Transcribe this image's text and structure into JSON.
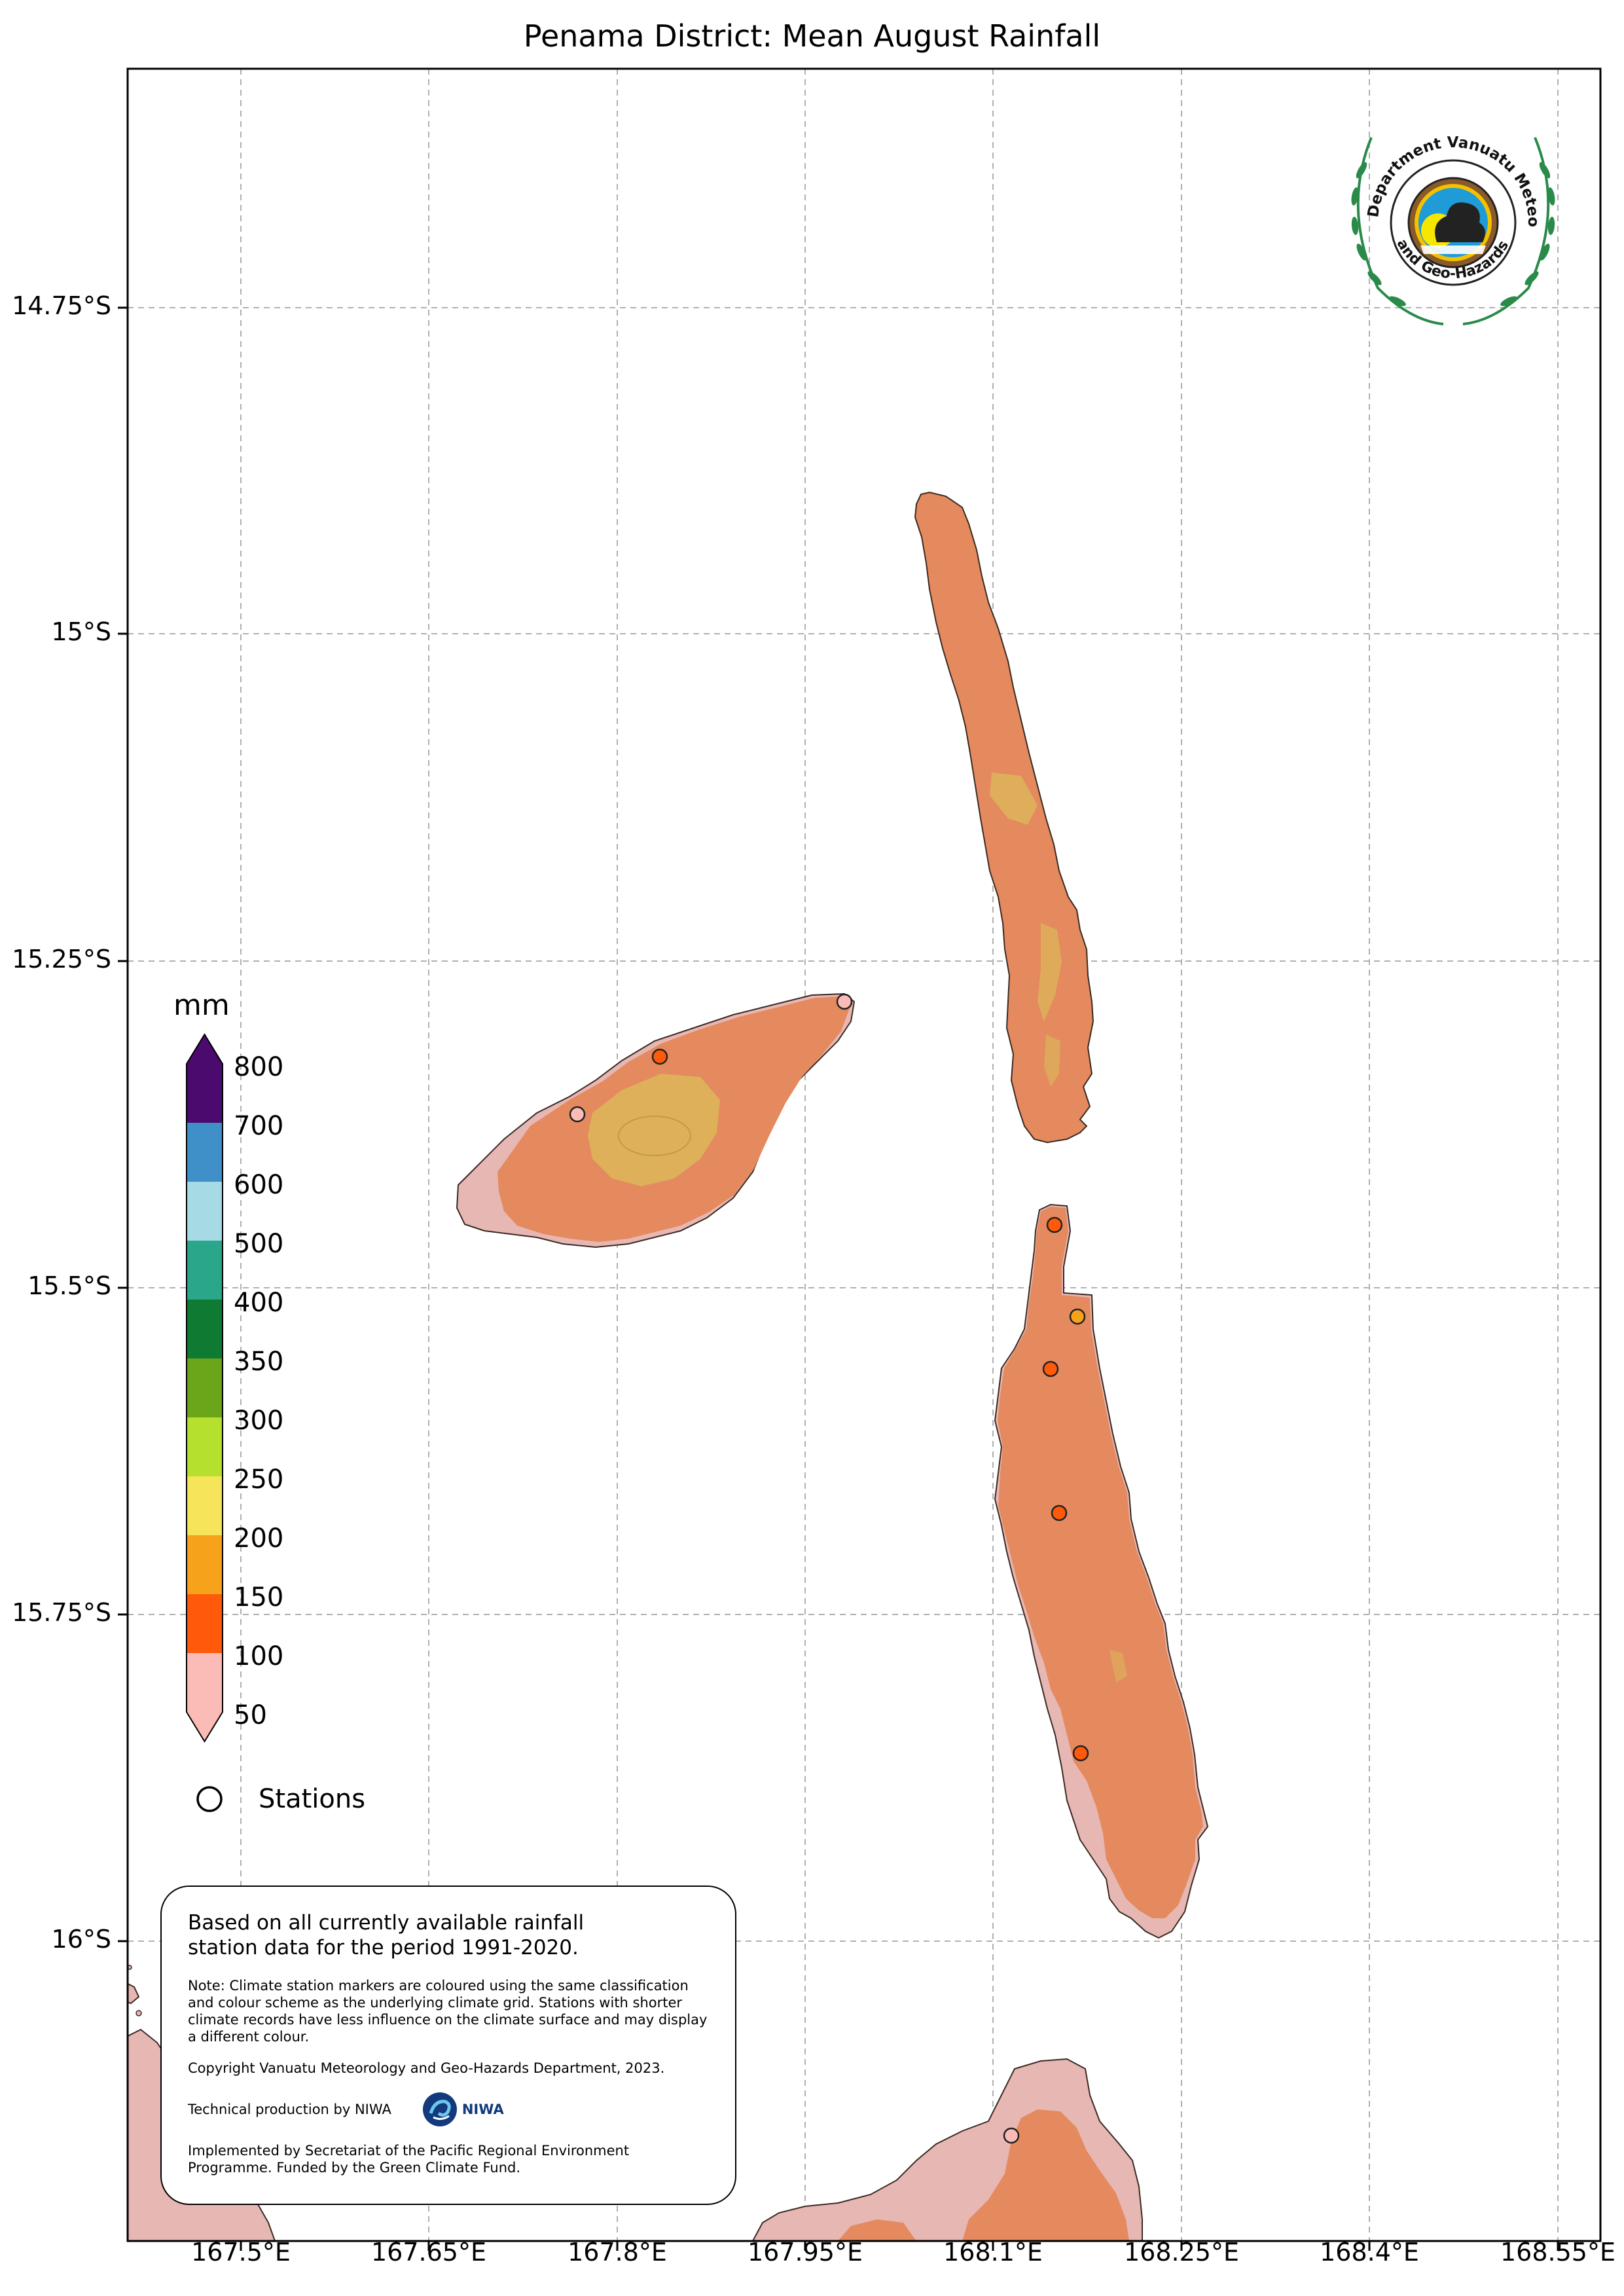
{
  "title": "Penama District: Mean August Rainfall",
  "axes": {
    "y_labels": [
      "14.75°S",
      "15°S",
      "15.25°S",
      "15.5°S",
      "15.75°S",
      "16°S"
    ],
    "x_labels": [
      "167.5°E",
      "167.65°E",
      "167.8°E",
      "167.95°E",
      "168.1°E",
      "168.25°E",
      "168.4°E",
      "168.55°E"
    ]
  },
  "colorbar": {
    "unit": "mm",
    "ticks": [
      "800",
      "700",
      "600",
      "500",
      "400",
      "350",
      "300",
      "250",
      "200",
      "150",
      "100",
      "50"
    ],
    "colors": [
      "#4a0a6e",
      "#3f8fc9",
      "#a6dbe6",
      "#2aa68a",
      "#0f7a32",
      "#6aa51a",
      "#b5e12e",
      "#f6e55a",
      "#f7a21b",
      "#ff5a0a",
      "#fbbcb7"
    ]
  },
  "legend": {
    "stations_label": "Stations"
  },
  "note": {
    "main": "Based on all currently available rainfall station data for the period 1991-2020.",
    "note": "Note: Climate station markers are coloured using the same classification and colour scheme as the underlying climate grid. Stations with shorter climate records have less influence on the climate surface and may display a different colour.",
    "copyright": "Copyright Vanuatu Meteorology and Geo-Hazards Department, 2023.",
    "technical": "Technical production by NIWA",
    "niwa": "NIWA",
    "implemented": "Implemented by Secretariat of the Pacific Regional Environment Programme. Funded by the Green Climate Fund."
  },
  "logo_text": "Department Vanuatu Meteorology and Geo-Hazards",
  "map_colors": {
    "land_main": "#e48a5e",
    "land_dry": "#e7b7b4",
    "wet_patch": "#ddb45a"
  }
}
